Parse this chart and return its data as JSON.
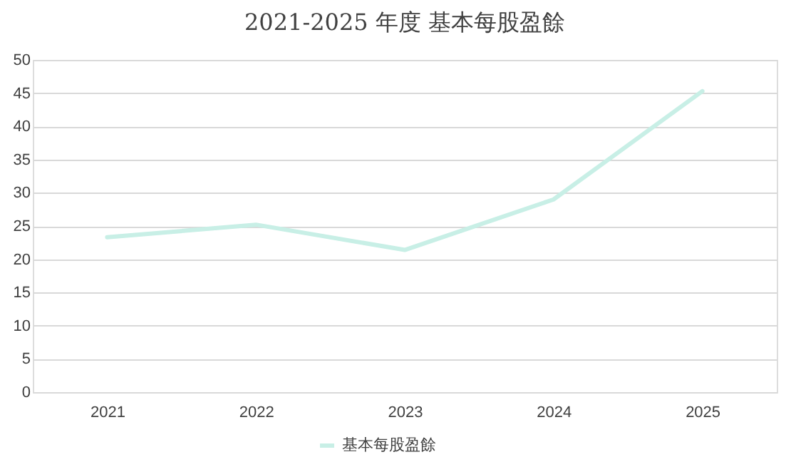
{
  "chart_data": {
    "type": "line",
    "title": "2021-2025 年度 基本每股盈餘",
    "categories": [
      "2021",
      "2022",
      "2023",
      "2024",
      "2025"
    ],
    "series": [
      {
        "name": "基本每股盈餘",
        "color": "#c8efe6",
        "values": [
          23.3,
          25.2,
          21.4,
          29.0,
          45.3
        ]
      }
    ],
    "ylim": [
      0,
      50
    ],
    "yticks": [
      0,
      5,
      10,
      15,
      20,
      25,
      30,
      35,
      40,
      45,
      50
    ],
    "grid": "y",
    "legend": "bottom",
    "marker": "none",
    "line_style": "solid"
  }
}
